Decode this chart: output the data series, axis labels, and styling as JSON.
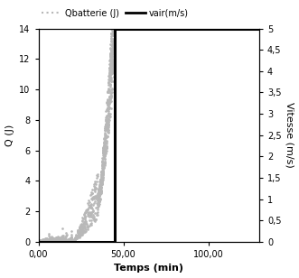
{
  "title": "",
  "xlabel": "Temps (min)",
  "ylabel_left": "Q (J)",
  "ylabel_right": "Vitesse (m/s)",
  "legend_label_1": "Qbatterie (J)",
  "legend_label_2": "vair(m/s)",
  "xlim": [
    0,
    130
  ],
  "ylim_left": [
    0,
    14
  ],
  "ylim_right": [
    0,
    5
  ],
  "xticks": [
    0,
    50,
    100
  ],
  "xticklabels": [
    "0,00",
    "50,00",
    "100,00"
  ],
  "yticks_left": [
    0,
    2,
    4,
    6,
    8,
    10,
    12,
    14
  ],
  "yticks_right": [
    0,
    0.5,
    1.0,
    1.5,
    2.0,
    2.5,
    3.0,
    3.5,
    4.0,
    4.5,
    5.0
  ],
  "ytick_right_labels": [
    "0",
    "0,5",
    "1",
    "1,5",
    "2",
    "2,5",
    "3",
    "3,5",
    "4",
    "4,5",
    "5"
  ],
  "dot_color": "#b8b8b8",
  "step_color": "#000000",
  "background_color": "#ffffff",
  "vair_step_on": 45,
  "vair_step_max": 5,
  "fontsize_labels": 8,
  "fontsize_ticks": 7,
  "fontsize_legend": 7,
  "legend_dot_marker": "....."
}
